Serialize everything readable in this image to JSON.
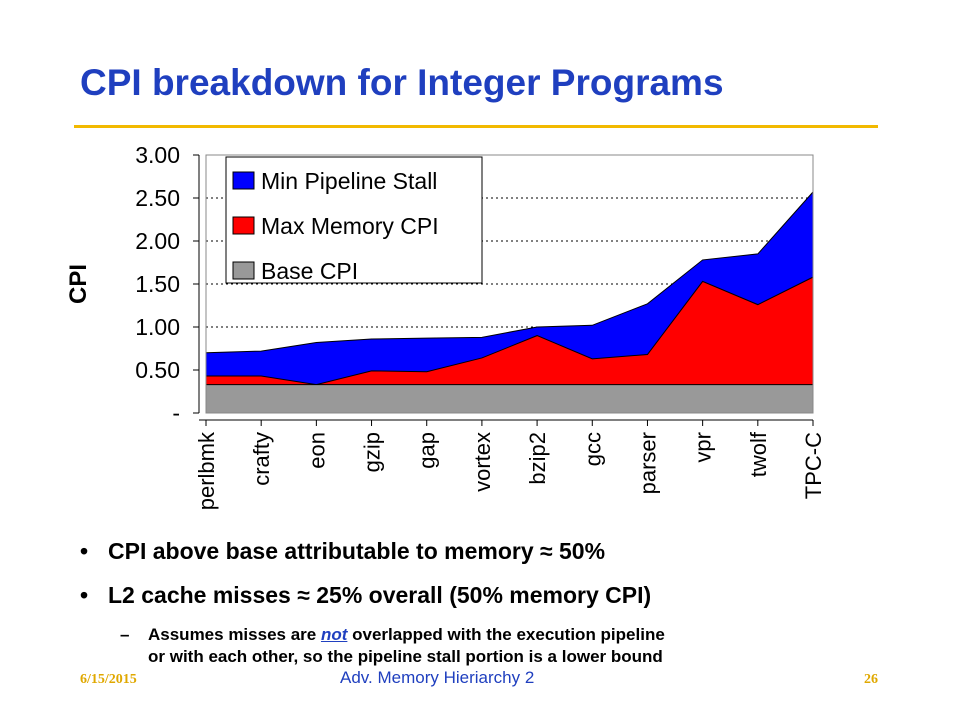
{
  "slide": {
    "title": "CPI breakdown for Integer Programs",
    "bullets": [
      "CPI above base attributable to memory ≈ 50%",
      "L2 cache misses ≈  25% overall (50% memory CPI)"
    ],
    "sub_bullet": {
      "pre": "Assumes misses are ",
      "emph": "not",
      "post": " overlapped with the execution pipeline",
      "line2": "or with each other, so the pipeline stall portion is a lower bound"
    },
    "footer": {
      "date": "6/15/2015",
      "center": "Adv. Memory Hieriarchy 2",
      "page": "26"
    }
  },
  "colors": {
    "title": "#1f3fbf",
    "rule": "#f2b900",
    "stall": "#0000ff",
    "memory": "#ff0000",
    "base": "#999999",
    "footer": "#e0a800"
  },
  "chart_data": {
    "type": "area",
    "stacked": true,
    "ylabel": "CPI",
    "ylim": [
      0,
      3.0
    ],
    "yticks": [
      "-",
      "0.50",
      "1.00",
      "1.50",
      "2.00",
      "2.50",
      "3.00"
    ],
    "grid": "dotted horizontal",
    "legend_position": "top-left",
    "categories": [
      "perlbmk",
      "crafty",
      "eon",
      "gzip",
      "gap",
      "vortex",
      "bzip2",
      "gcc",
      "parser",
      "vpr",
      "twolf",
      "TPC-C"
    ],
    "series": [
      {
        "name": "Base CPI",
        "values": [
          0.33,
          0.33,
          0.33,
          0.33,
          0.33,
          0.33,
          0.33,
          0.33,
          0.33,
          0.33,
          0.33,
          0.33
        ]
      },
      {
        "name": "Max Memory CPI",
        "values": [
          0.1,
          0.1,
          0.0,
          0.16,
          0.15,
          0.31,
          0.57,
          0.3,
          0.35,
          1.2,
          0.93,
          1.25
        ]
      },
      {
        "name": "Min Pipeline Stall",
        "values": [
          0.27,
          0.29,
          0.49,
          0.37,
          0.39,
          0.24,
          0.1,
          0.39,
          0.59,
          0.25,
          0.59,
          0.99
        ]
      }
    ],
    "legend_order": [
      "Min Pipeline Stall",
      "Max Memory CPI",
      "Base CPI"
    ]
  }
}
